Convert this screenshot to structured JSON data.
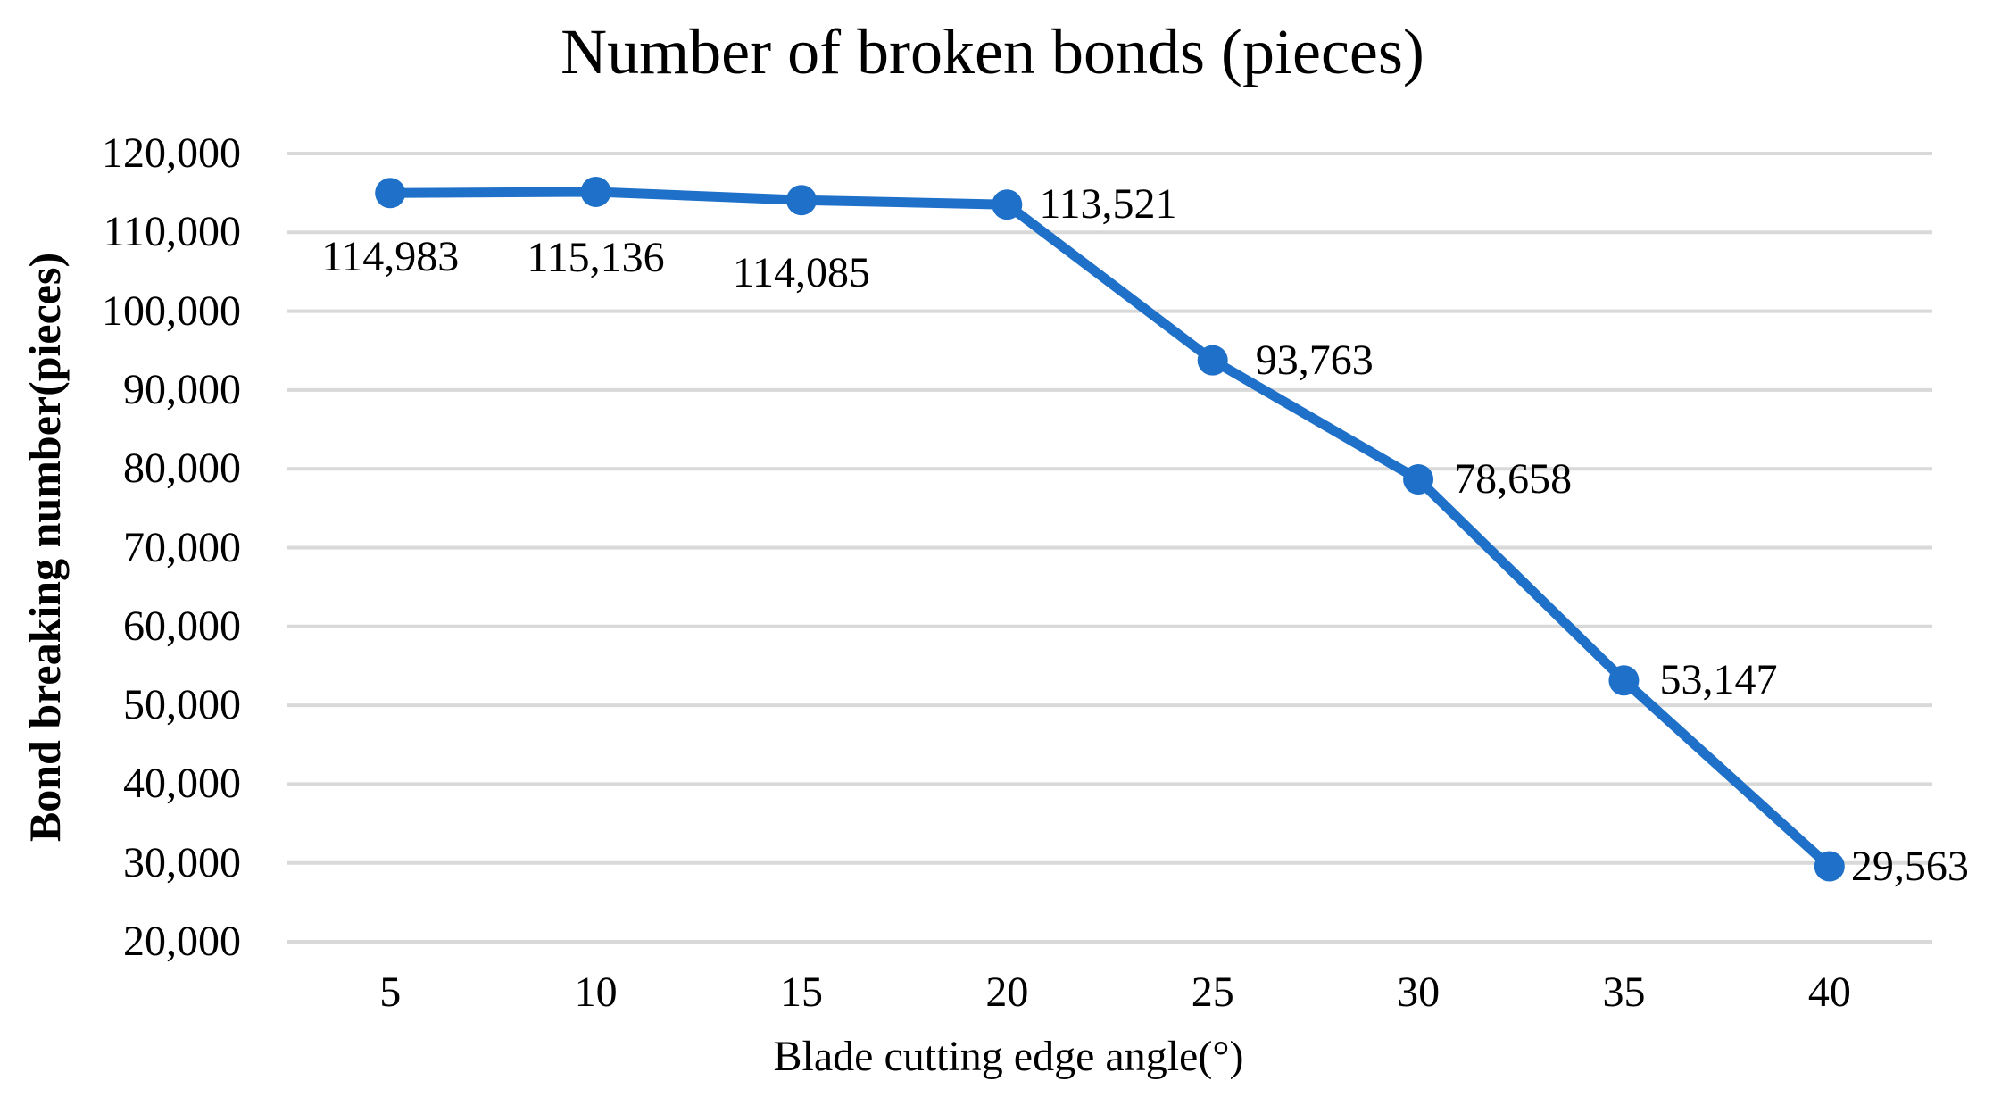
{
  "chart_data": {
    "type": "line",
    "title": "Number of broken bonds (pieces)",
    "xlabel": "Blade cutting edge angle(°)",
    "ylabel": "Bond breaking number(pieces)",
    "x": [
      5,
      10,
      15,
      20,
      25,
      30,
      35,
      40
    ],
    "values": [
      114983,
      115136,
      114085,
      113521,
      93763,
      78658,
      53147,
      29563
    ],
    "data_labels": [
      "114,983",
      "115,136",
      "114,085",
      "113,521",
      "93,763",
      "78,658",
      "53,147",
      "29,563"
    ],
    "xtick_labels": [
      "5",
      "10",
      "15",
      "20",
      "25",
      "30",
      "35",
      "40"
    ],
    "ytick_labels": [
      "120,000",
      "110,000",
      "100,000",
      "90,000",
      "80,000",
      "70,000",
      "60,000",
      "50,000",
      "40,000",
      "30,000",
      "20,000"
    ],
    "ylim": [
      20000,
      120000
    ],
    "ytick_step": 10000,
    "grid": "horizontal",
    "legend": "none",
    "line_color": "#1F70C8",
    "marker_color": "#1F70C8",
    "gridline_color": "#D9D9D9",
    "text_color": "#000000",
    "background": "#FFFFFF"
  }
}
